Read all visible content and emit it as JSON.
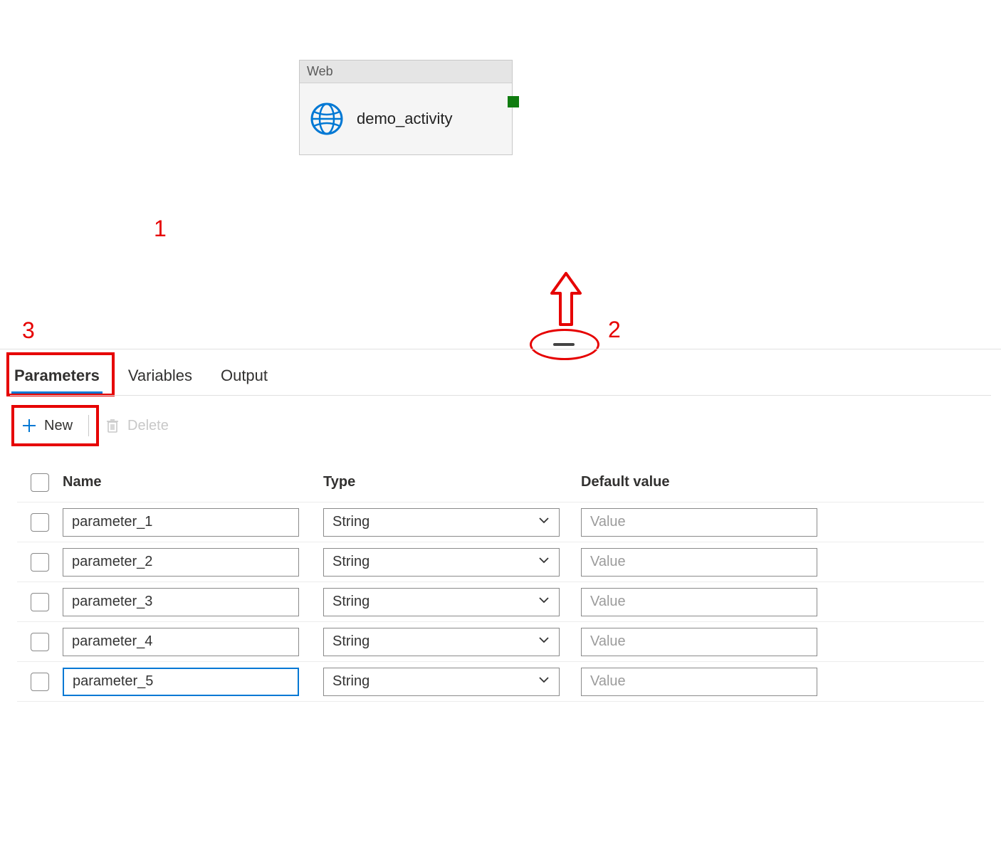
{
  "annotations": {
    "n1": "1",
    "n2": "2",
    "n3": "3",
    "color": "#e60000"
  },
  "activity": {
    "type_label": "Web",
    "name": "demo_activity",
    "icon": "globe-icon",
    "port_color": "#107c10"
  },
  "collapse_handle": {
    "label": "panel-drag-handle"
  },
  "tabs": [
    {
      "label": "Parameters",
      "active": true
    },
    {
      "label": "Variables",
      "active": false
    },
    {
      "label": "Output",
      "active": false
    }
  ],
  "toolbar": {
    "new_label": "New",
    "delete_label": "Delete",
    "delete_enabled": false
  },
  "columns": {
    "name": "Name",
    "type": "Type",
    "value": "Default value"
  },
  "type_options_selected": "String",
  "value_placeholder": "Value",
  "parameters": [
    {
      "name": "parameter_1",
      "type": "String",
      "value": "",
      "active": false
    },
    {
      "name": "parameter_2",
      "type": "String",
      "value": "",
      "active": false
    },
    {
      "name": "parameter_3",
      "type": "String",
      "value": "",
      "active": false
    },
    {
      "name": "parameter_4",
      "type": "String",
      "value": "",
      "active": false
    },
    {
      "name": "parameter_5",
      "type": "String",
      "value": "",
      "active": true
    }
  ],
  "colors": {
    "accent": "#0078d4",
    "border": "#8a8a8a",
    "muted": "#c8c8c8",
    "success": "#107c10"
  }
}
